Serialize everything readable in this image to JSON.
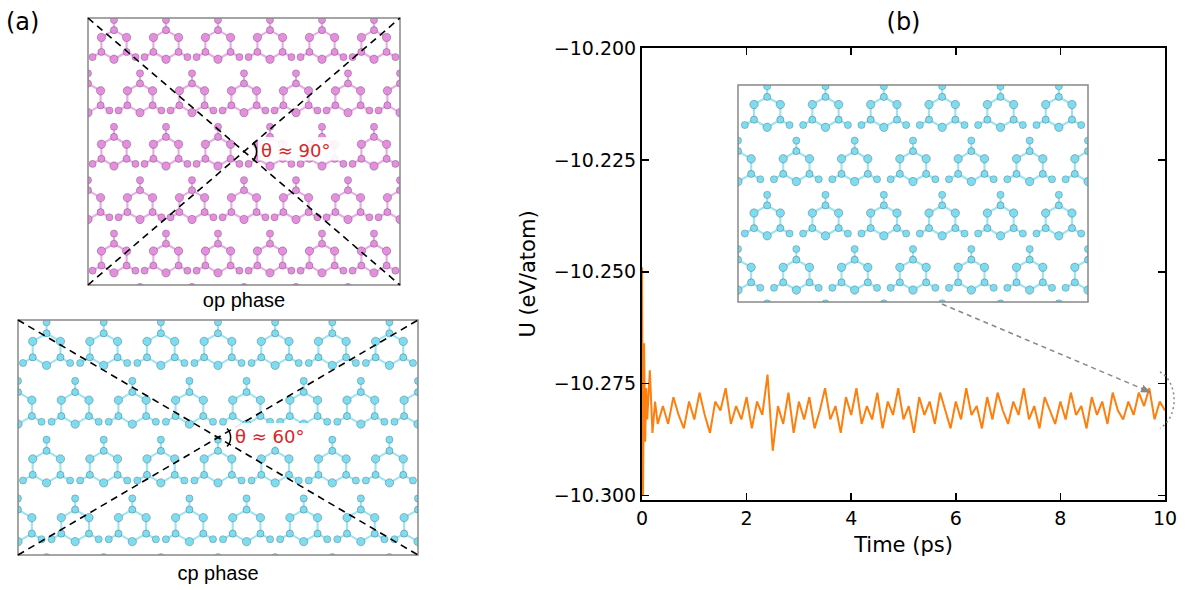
{
  "panel_a": {
    "label": "(a)",
    "structures": [
      {
        "name": "op phase",
        "angle_label": "θ ≈ 90°",
        "color": "#e38fde"
      },
      {
        "name": "cp phase",
        "angle_label": "θ ≈ 60°",
        "color": "#7ddcef"
      }
    ]
  },
  "chart_data": {
    "type": "line",
    "title": "(b)",
    "x_label": "Time (ps)",
    "y_label": "U (eV/atom)",
    "color": "#ff7f0e",
    "x": [
      0,
      0.02,
      0.04,
      0.06,
      0.08,
      0.1,
      0.15,
      0.2,
      0.25,
      0.3,
      0.4,
      0.5,
      0.6,
      0.7,
      0.8,
      0.9,
      1.0,
      1.1,
      1.2,
      1.3,
      1.4,
      1.5,
      1.6,
      1.7,
      1.8,
      1.9,
      2.0,
      2.1,
      2.2,
      2.3,
      2.4,
      2.5,
      2.6,
      2.7,
      2.8,
      2.9,
      3.0,
      3.1,
      3.2,
      3.3,
      3.4,
      3.5,
      3.6,
      3.7,
      3.8,
      3.9,
      4.0,
      4.1,
      4.2,
      4.3,
      4.4,
      4.5,
      4.6,
      4.7,
      4.8,
      4.9,
      5.0,
      5.1,
      5.2,
      5.3,
      5.4,
      5.5,
      5.6,
      5.7,
      5.8,
      5.9,
      6.0,
      6.1,
      6.2,
      6.3,
      6.4,
      6.5,
      6.6,
      6.7,
      6.8,
      6.9,
      7.0,
      7.1,
      7.2,
      7.3,
      7.4,
      7.5,
      7.6,
      7.7,
      7.8,
      7.9,
      8.0,
      8.1,
      8.2,
      8.3,
      8.4,
      8.5,
      8.6,
      8.7,
      8.8,
      8.9,
      9.0,
      9.1,
      9.2,
      9.3,
      9.4,
      9.5,
      9.6,
      9.7,
      9.8,
      9.9,
      10.0
    ],
    "values": [
      -10.249,
      -10.3,
      -10.266,
      -10.288,
      -10.276,
      -10.283,
      -10.272,
      -10.286,
      -10.279,
      -10.284,
      -10.28,
      -10.284,
      -10.278,
      -10.282,
      -10.285,
      -10.279,
      -10.283,
      -10.277,
      -10.282,
      -10.286,
      -10.279,
      -10.281,
      -10.276,
      -10.284,
      -10.28,
      -10.283,
      -10.278,
      -10.285,
      -10.279,
      -10.282,
      -10.273,
      -10.29,
      -10.28,
      -10.284,
      -10.277,
      -10.286,
      -10.279,
      -10.283,
      -10.278,
      -10.285,
      -10.281,
      -10.276,
      -10.283,
      -10.28,
      -10.286,
      -10.278,
      -10.282,
      -10.276,
      -10.284,
      -10.28,
      -10.283,
      -10.277,
      -10.285,
      -10.279,
      -10.282,
      -10.276,
      -10.283,
      -10.28,
      -10.286,
      -10.278,
      -10.282,
      -10.279,
      -10.284,
      -10.277,
      -10.281,
      -10.285,
      -10.279,
      -10.283,
      -10.276,
      -10.282,
      -10.28,
      -10.285,
      -10.278,
      -10.283,
      -10.277,
      -10.281,
      -10.284,
      -10.279,
      -10.282,
      -10.276,
      -10.283,
      -10.28,
      -10.285,
      -10.278,
      -10.281,
      -10.284,
      -10.279,
      -10.283,
      -10.277,
      -10.282,
      -10.28,
      -10.285,
      -10.278,
      -10.282,
      -10.279,
      -10.284,
      -10.277,
      -10.281,
      -10.283,
      -10.279,
      -10.282,
      -10.277,
      -10.28,
      -10.276,
      -10.283,
      -10.279,
      -10.281
    ],
    "xlim": [
      0,
      10
    ],
    "ylim": [
      -10.301,
      -10.2
    ],
    "xticks": [
      0,
      2,
      4,
      6,
      8,
      10
    ],
    "yticks": [
      {
        "value": -10.3,
        "label": "−10.300"
      },
      {
        "value": -10.275,
        "label": "−10.275"
      },
      {
        "value": -10.25,
        "label": "−10.250"
      },
      {
        "value": -10.225,
        "label": "−10.225"
      },
      {
        "value": -10.2,
        "label": "−10.200"
      }
    ],
    "grid": false
  }
}
